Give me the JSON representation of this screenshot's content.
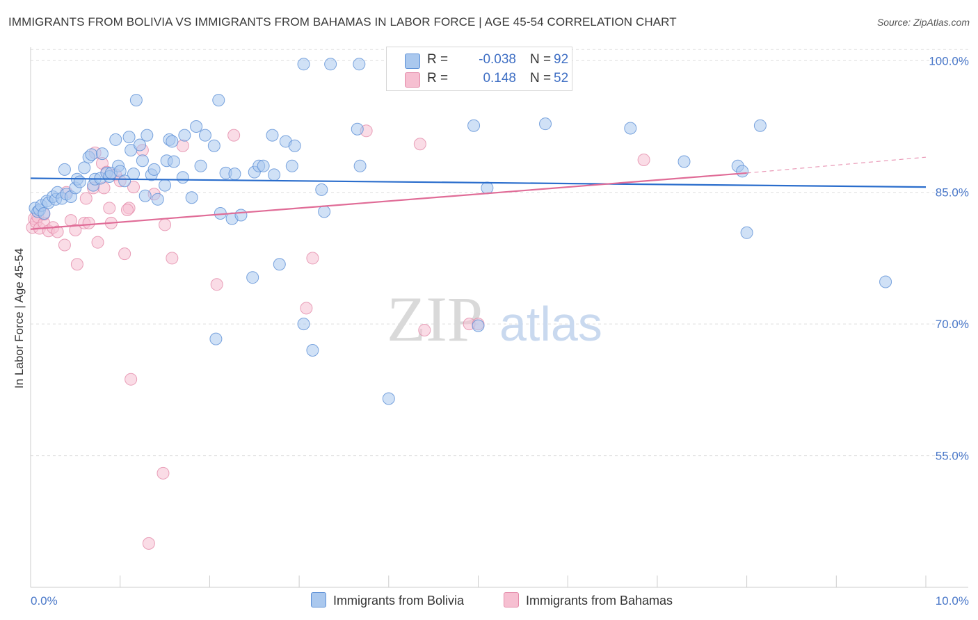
{
  "title": "IMMIGRANTS FROM BOLIVIA VS IMMIGRANTS FROM BAHAMAS IN LABOR FORCE | AGE 45-54 CORRELATION CHART",
  "source": "Source: ZipAtlas.com",
  "watermark": {
    "zip": "ZIP",
    "atlas": "atlas"
  },
  "legend": {
    "series1": {
      "r_label": "R =",
      "r_value": "-0.038",
      "n_label": "N =",
      "n_value": "92"
    },
    "series2": {
      "r_label": "R =",
      "r_value": "0.148",
      "n_label": "N =",
      "n_value": "52"
    }
  },
  "colors": {
    "bolivia_fill": "#aac8ee",
    "bolivia_stroke": "#5b8fd6",
    "bolivia_line": "#2a6dcc",
    "bahamas_fill": "#f6bfd1",
    "bahamas_stroke": "#e48aa9",
    "bahamas_line": "#e06c97",
    "tick_text": "#4a78c9",
    "grid": "#dddddd"
  },
  "chart_data": {
    "type": "scatter",
    "title": "IMMIGRANTS FROM BOLIVIA VS IMMIGRANTS FROM BAHAMAS IN LABOR FORCE | AGE 45-54 CORRELATION CHART",
    "xlabel": "",
    "ylabel": "In Labor Force | Age 45-54",
    "xlim": [
      0,
      10
    ],
    "ylim": [
      40,
      102
    ],
    "x_tick_labels": [
      "0.0%",
      "10.0%"
    ],
    "y_ticks": [
      55,
      70,
      85,
      100
    ],
    "y_tick_labels": [
      "55.0%",
      "70.0%",
      "85.0%",
      "100.0%"
    ],
    "grid": true,
    "legend_position": "bottom",
    "series": [
      {
        "name": "Immigrants from Bolivia",
        "r": -0.038,
        "n": 92,
        "trend": {
          "x": [
            0,
            10
          ],
          "y": [
            86.6,
            85.6
          ]
        },
        "points": [
          [
            0.05,
            83.2
          ],
          [
            0.08,
            82.8
          ],
          [
            0.1,
            83.0
          ],
          [
            0.12,
            83.5
          ],
          [
            0.15,
            82.6
          ],
          [
            0.18,
            84.0
          ],
          [
            0.2,
            83.8
          ],
          [
            0.25,
            84.5
          ],
          [
            0.28,
            84.2
          ],
          [
            0.3,
            85.0
          ],
          [
            0.35,
            84.3
          ],
          [
            0.38,
            87.6
          ],
          [
            0.4,
            84.8
          ],
          [
            0.45,
            84.5
          ],
          [
            0.5,
            85.5
          ],
          [
            0.52,
            86.5
          ],
          [
            0.55,
            86.2
          ],
          [
            0.6,
            87.8
          ],
          [
            0.65,
            89.0
          ],
          [
            0.68,
            89.3
          ],
          [
            0.7,
            85.8
          ],
          [
            0.72,
            86.5
          ],
          [
            0.78,
            86.6
          ],
          [
            0.8,
            89.4
          ],
          [
            0.85,
            87.2
          ],
          [
            0.88,
            86.8
          ],
          [
            0.9,
            87.2
          ],
          [
            0.95,
            91.0
          ],
          [
            0.98,
            88.0
          ],
          [
            1.0,
            87.4
          ],
          [
            1.05,
            86.3
          ],
          [
            1.1,
            91.3
          ],
          [
            1.12,
            89.8
          ],
          [
            1.15,
            87.1
          ],
          [
            1.18,
            95.5
          ],
          [
            1.22,
            90.4
          ],
          [
            1.25,
            88.6
          ],
          [
            1.28,
            84.6
          ],
          [
            1.3,
            91.5
          ],
          [
            1.35,
            87.0
          ],
          [
            1.38,
            87.6
          ],
          [
            1.42,
            84.2
          ],
          [
            1.5,
            85.8
          ],
          [
            1.52,
            88.6
          ],
          [
            1.55,
            91.0
          ],
          [
            1.58,
            90.8
          ],
          [
            1.6,
            88.5
          ],
          [
            1.7,
            86.7
          ],
          [
            1.72,
            91.5
          ],
          [
            1.8,
            84.4
          ],
          [
            1.85,
            92.5
          ],
          [
            1.9,
            88.0
          ],
          [
            1.95,
            91.5
          ],
          [
            2.05,
            90.3
          ],
          [
            2.1,
            95.5
          ],
          [
            2.12,
            82.6
          ],
          [
            2.18,
            87.2
          ],
          [
            2.25,
            82.0
          ],
          [
            2.28,
            87.1
          ],
          [
            2.35,
            82.4
          ],
          [
            2.5,
            87.3
          ],
          [
            2.55,
            88.0
          ],
          [
            2.6,
            88.0
          ],
          [
            2.7,
            91.5
          ],
          [
            2.72,
            87.0
          ],
          [
            2.85,
            90.8
          ],
          [
            2.92,
            88.0
          ],
          [
            2.95,
            90.3
          ],
          [
            3.05,
            99.6
          ],
          [
            3.25,
            85.3
          ],
          [
            3.28,
            82.8
          ],
          [
            3.35,
            99.6
          ],
          [
            3.68,
            88.0
          ],
          [
            3.67,
            99.6
          ],
          [
            3.65,
            92.2
          ],
          [
            4.95,
            92.6
          ],
          [
            5.0,
            69.8
          ],
          [
            5.1,
            85.5
          ],
          [
            5.75,
            92.8
          ],
          [
            6.7,
            92.3
          ],
          [
            7.3,
            88.5
          ],
          [
            7.9,
            88.0
          ],
          [
            8.0,
            80.4
          ],
          [
            8.15,
            92.6
          ],
          [
            9.55,
            74.8
          ],
          [
            7.95,
            87.4
          ],
          [
            2.07,
            68.3
          ],
          [
            2.48,
            75.3
          ],
          [
            2.78,
            76.8
          ],
          [
            3.15,
            67.0
          ],
          [
            3.05,
            70.0
          ],
          [
            4.0,
            61.5
          ]
        ]
      },
      {
        "name": "Immigrants from Bahamas",
        "r": 0.148,
        "n": 52,
        "trend": {
          "x": [
            0,
            8
          ],
          "y": [
            80.8,
            87.2
          ],
          "dashed_to": [
            10,
            89.0
          ]
        },
        "points": [
          [
            0.02,
            81.0
          ],
          [
            0.04,
            82.0
          ],
          [
            0.06,
            81.6
          ],
          [
            0.08,
            82.2
          ],
          [
            0.1,
            80.9
          ],
          [
            0.15,
            81.5
          ],
          [
            0.2,
            80.6
          ],
          [
            0.25,
            81.0
          ],
          [
            0.3,
            80.5
          ],
          [
            0.38,
            79.0
          ],
          [
            0.4,
            85.0
          ],
          [
            0.45,
            81.8
          ],
          [
            0.5,
            80.7
          ],
          [
            0.52,
            76.8
          ],
          [
            0.6,
            81.5
          ],
          [
            0.62,
            84.3
          ],
          [
            0.65,
            81.5
          ],
          [
            0.7,
            85.5
          ],
          [
            0.72,
            89.5
          ],
          [
            0.75,
            79.3
          ],
          [
            0.8,
            88.3
          ],
          [
            0.82,
            85.5
          ],
          [
            0.85,
            87.3
          ],
          [
            0.88,
            83.2
          ],
          [
            0.9,
            81.5
          ],
          [
            0.95,
            87.0
          ],
          [
            1.0,
            86.3
          ],
          [
            1.05,
            78.0
          ],
          [
            1.1,
            83.2
          ],
          [
            1.12,
            63.7
          ],
          [
            1.15,
            85.6
          ],
          [
            1.25,
            89.8
          ],
          [
            1.32,
            45.0
          ],
          [
            1.38,
            84.8
          ],
          [
            1.48,
            53.0
          ],
          [
            1.5,
            81.3
          ],
          [
            1.58,
            77.5
          ],
          [
            1.7,
            90.3
          ],
          [
            2.08,
            74.5
          ],
          [
            2.27,
            91.5
          ],
          [
            3.08,
            71.8
          ],
          [
            3.15,
            77.5
          ],
          [
            3.75,
            92.0
          ],
          [
            4.3,
            100.0
          ],
          [
            4.35,
            90.5
          ],
          [
            4.4,
            69.3
          ],
          [
            4.9,
            70.0
          ],
          [
            5.0,
            70.0
          ],
          [
            5.9,
            100.0
          ],
          [
            6.85,
            88.7
          ],
          [
            1.08,
            83.0
          ],
          [
            0.15,
            82.5
          ]
        ]
      }
    ]
  }
}
